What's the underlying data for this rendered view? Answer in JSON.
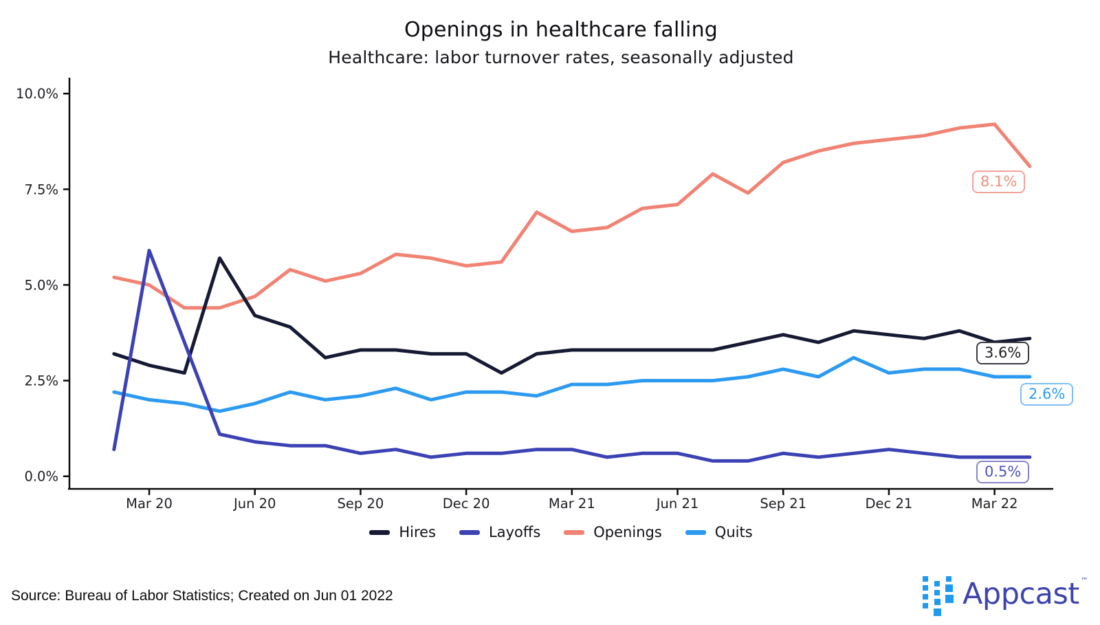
{
  "title": "Openings in healthcare falling",
  "subtitle": "Healthcare: labor turnover rates, seasonally adjusted",
  "source_note": "Source: Bureau of Labor Statistics; Created on Jun 01 2022",
  "logo": {
    "text": "Appcast",
    "tm": "™",
    "icon": "appcast-squares-icon",
    "text_color": "#3d44ad",
    "icon_color": "#1e9bf0"
  },
  "chart_data": {
    "type": "line",
    "title": "Openings in healthcare falling",
    "subtitle": "Healthcare: labor turnover rates, seasonally adjusted",
    "x": [
      "Feb 20",
      "Mar 20",
      "Apr 20",
      "May 20",
      "Jun 20",
      "Jul 20",
      "Aug 20",
      "Sep 20",
      "Oct 20",
      "Nov 20",
      "Dec 20",
      "Jan 21",
      "Feb 21",
      "Mar 21",
      "Apr 21",
      "May 21",
      "Jun 21",
      "Jul 21",
      "Aug 21",
      "Sep 21",
      "Oct 21",
      "Nov 21",
      "Dec 21",
      "Jan 22",
      "Feb 22",
      "Mar 22",
      "Apr 22"
    ],
    "series": [
      {
        "name": "Hires",
        "color": "#161a33",
        "values": [
          3.2,
          2.9,
          2.7,
          5.7,
          4.2,
          3.9,
          3.1,
          3.3,
          3.3,
          3.2,
          3.2,
          2.7,
          3.2,
          3.3,
          3.3,
          3.3,
          3.3,
          3.3,
          3.5,
          3.7,
          3.5,
          3.8,
          3.7,
          3.6,
          3.8,
          3.5,
          3.6
        ]
      },
      {
        "name": "Layoffs",
        "color": "#3c42b4",
        "values": [
          0.7,
          5.9,
          3.5,
          1.1,
          0.9,
          0.8,
          0.8,
          0.6,
          0.7,
          0.5,
          0.6,
          0.6,
          0.7,
          0.7,
          0.5,
          0.6,
          0.6,
          0.4,
          0.4,
          0.6,
          0.5,
          0.6,
          0.7,
          0.6,
          0.5,
          0.5,
          0.5
        ]
      },
      {
        "name": "Openings",
        "color": "#f08374",
        "values": [
          5.2,
          5.0,
          4.4,
          4.4,
          4.7,
          5.4,
          5.1,
          5.3,
          5.8,
          5.7,
          5.5,
          5.6,
          6.9,
          6.4,
          6.5,
          7.0,
          7.1,
          7.9,
          7.4,
          8.2,
          8.5,
          8.7,
          8.8,
          8.9,
          9.1,
          9.2,
          8.1
        ]
      },
      {
        "name": "Quits",
        "color": "#2b9af0",
        "values": [
          2.2,
          2.0,
          1.9,
          1.7,
          1.9,
          2.2,
          2.0,
          2.1,
          2.3,
          2.0,
          2.2,
          2.2,
          2.1,
          2.4,
          2.4,
          2.5,
          2.5,
          2.5,
          2.6,
          2.8,
          2.6,
          3.1,
          2.7,
          2.8,
          2.8,
          2.6,
          2.6
        ]
      }
    ],
    "x_tick_labels": [
      "Mar 20",
      "Jun 20",
      "Sep 20",
      "Dec 20",
      "Mar 21",
      "Jun 21",
      "Sep 21",
      "Dec 21",
      "Mar 22"
    ],
    "y_tick_labels": [
      "0.0%",
      "2.5%",
      "5.0%",
      "7.5%",
      "10.0%"
    ],
    "y_tick_values": [
      0,
      2.5,
      5.0,
      7.5,
      10.0
    ],
    "ylim": [
      0,
      10
    ],
    "grid": false,
    "legend_position": "bottom",
    "end_labels": {
      "hires": "3.6%",
      "layoffs": "0.5%",
      "openings": "8.1%",
      "quits": "2.6%"
    }
  }
}
